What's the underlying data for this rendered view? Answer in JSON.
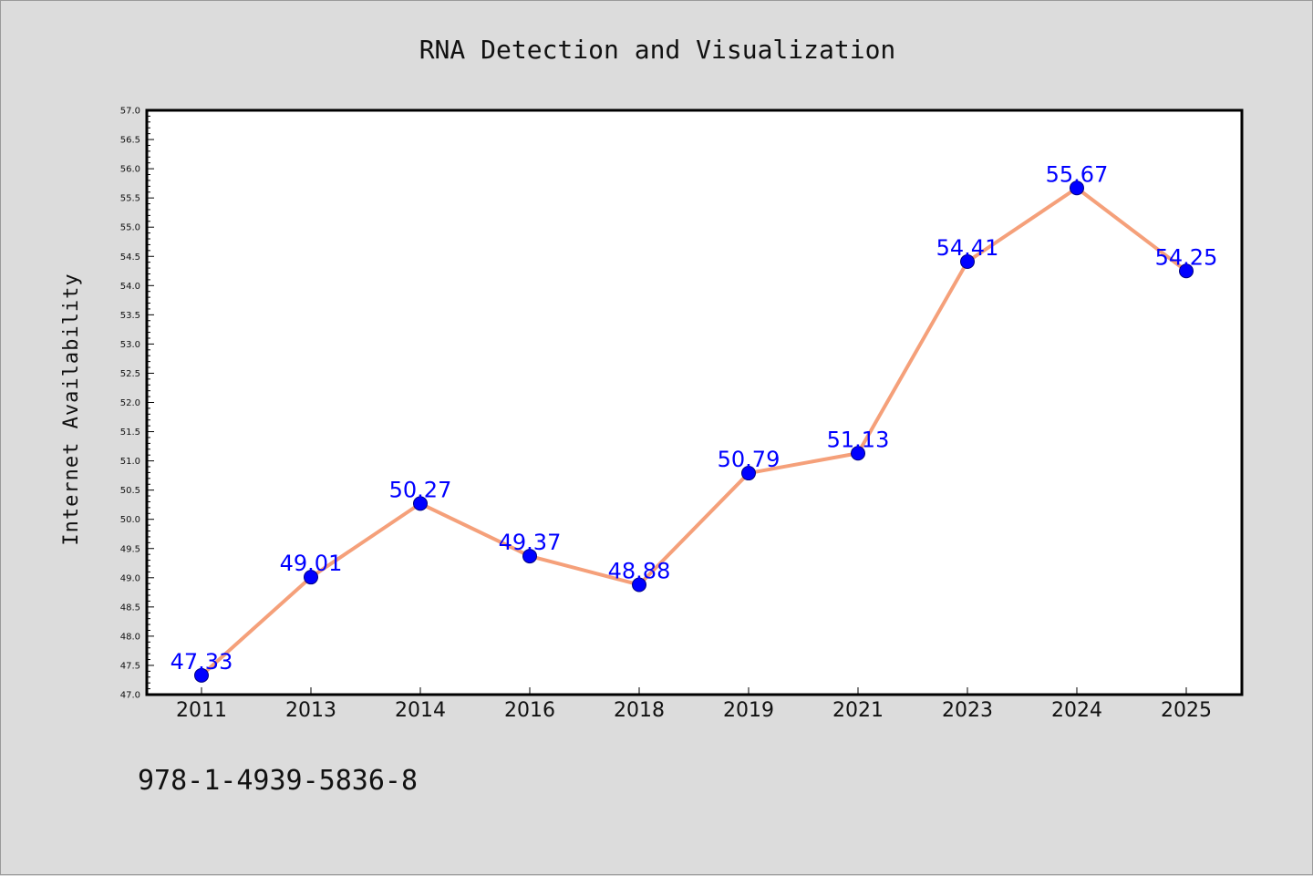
{
  "chart_data": {
    "type": "line",
    "title": "RNA Detection and Visualization",
    "xlabel": "",
    "ylabel": "Internet Availability",
    "categories": [
      "2011",
      "2013",
      "2014",
      "2016",
      "2018",
      "2019",
      "2021",
      "2023",
      "2024",
      "2025"
    ],
    "series": [
      {
        "values": [
          47.33,
          49.01,
          50.27,
          49.37,
          48.88,
          50.79,
          51.13,
          54.41,
          55.67,
          54.25
        ],
        "labels": [
          "47.33",
          "49.01",
          "50.27",
          "49.37",
          "48.88",
          "50.79",
          "51.13",
          "54.41",
          "55.67",
          "54.25"
        ]
      }
    ],
    "ylim": [
      47.0,
      57.0
    ],
    "yticks": [
      "47.0",
      "47.5",
      "48.0",
      "48.5",
      "49.0",
      "49.5",
      "50.0",
      "50.5",
      "51.0",
      "51.5",
      "52.0",
      "52.5",
      "53.0",
      "53.5",
      "54.0",
      "54.5",
      "55.0",
      "55.5",
      "56.0",
      "56.5",
      "57.0"
    ],
    "grid": false,
    "legend": "none",
    "colors": {
      "line": "#f5a07a",
      "marker": "#0000ff",
      "marker_edge": "#000080",
      "data_label": "#0000ff",
      "background": "#dcdcdc",
      "plot_area": "#ffffff"
    }
  },
  "footer": {
    "text": "978-1-4939-5836-8"
  }
}
